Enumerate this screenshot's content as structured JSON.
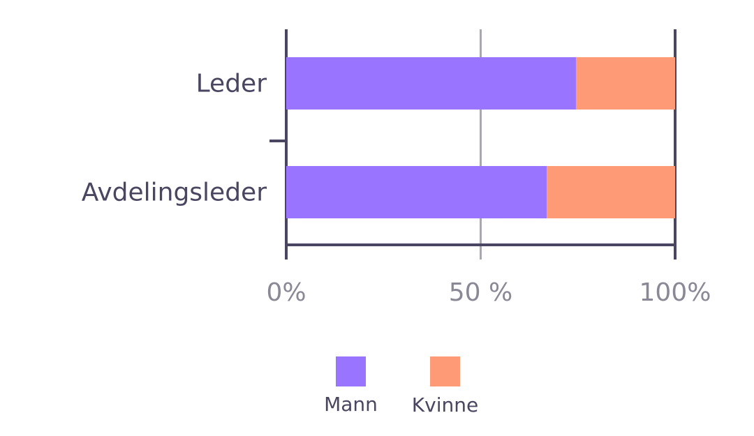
{
  "chart_data": {
    "type": "bar",
    "orientation": "horizontal",
    "stacked": true,
    "categories": [
      "Leder",
      "Avdelingsleder"
    ],
    "series": [
      {
        "name": "Mann",
        "color": "#9975ff",
        "values": [
          74.5,
          67
        ]
      },
      {
        "name": "Kvinne",
        "color": "#ff9a77",
        "values": [
          25.5,
          33
        ]
      }
    ],
    "xlim": [
      0,
      100
    ],
    "xticks": [
      {
        "value": 0,
        "label": "0%"
      },
      {
        "value": 50,
        "label": "50 %"
      },
      {
        "value": 100,
        "label": "100%"
      }
    ],
    "grid": true,
    "legend": "bottom"
  }
}
